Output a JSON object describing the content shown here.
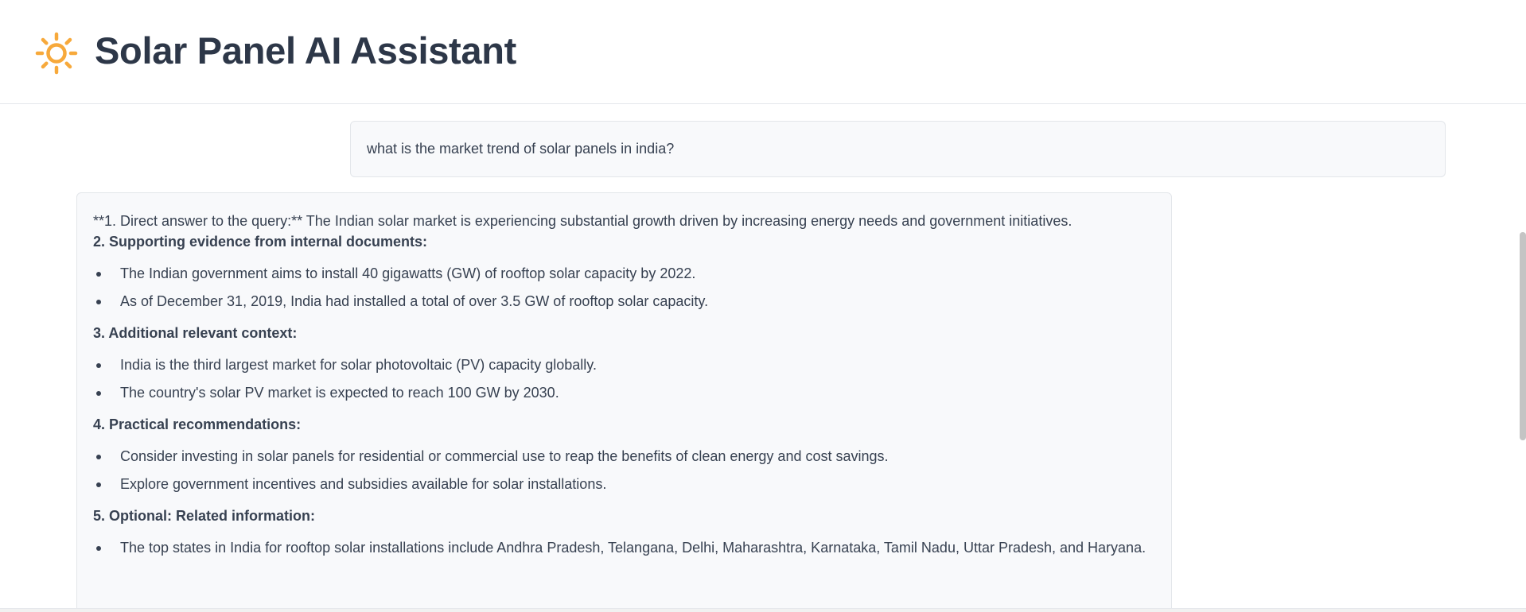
{
  "header": {
    "icon": "sun-icon",
    "icon_color": "#F7A93B",
    "title": "Solar Panel AI Assistant"
  },
  "chat": {
    "user_message": "what is the market trend of solar panels in india?",
    "assistant": {
      "intro": "**1. Direct answer to the query:** The Indian solar market is experiencing substantial growth driven by increasing energy needs and government initiatives.",
      "sections": [
        {
          "heading": "2. Supporting evidence from internal documents:",
          "items": [
            "The Indian government aims to install 40 gigawatts (GW) of rooftop solar capacity by 2022.",
            "As of December 31, 2019, India had installed a total of over 3.5 GW of rooftop solar capacity."
          ]
        },
        {
          "heading": "3. Additional relevant context:",
          "items": [
            "India is the third largest market for solar photovoltaic (PV) capacity globally.",
            "The country's solar PV market is expected to reach 100 GW by 2030."
          ]
        },
        {
          "heading": "4. Practical recommendations:",
          "items": [
            "Consider investing in solar panels for residential or commercial use to reap the benefits of clean energy and cost savings.",
            "Explore government incentives and subsidies available for solar installations."
          ]
        },
        {
          "heading": "5. Optional: Related information:",
          "items": [
            "The top states in India for rooftop solar installations include Andhra Pradesh, Telangana, Delhi, Maharashtra, Karnataka, Tamil Nadu, Uttar Pradesh, and Haryana."
          ]
        }
      ]
    }
  }
}
